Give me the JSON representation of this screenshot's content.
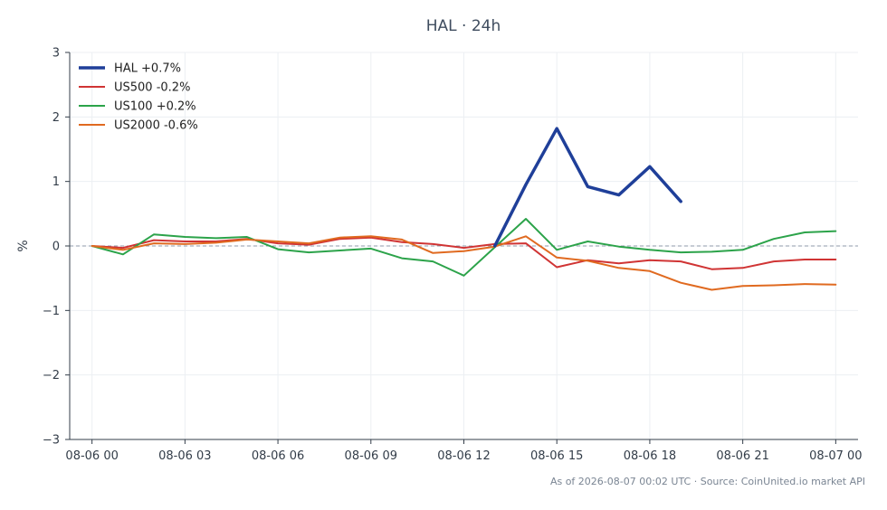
{
  "chart_data": {
    "type": "line",
    "title": "HAL · 24h",
    "ylabel": "%",
    "xlabel": "",
    "ylim": [
      -3,
      3
    ],
    "yticks": [
      3,
      2,
      1,
      0,
      -1,
      -2,
      -3
    ],
    "ytick_labels": [
      "3",
      "2",
      "1",
      "0",
      "−1",
      "−2",
      "−3"
    ],
    "x_hours": [
      0,
      1,
      2,
      3,
      4,
      5,
      6,
      7,
      8,
      9,
      10,
      11,
      12,
      13,
      14,
      15,
      16,
      17,
      18,
      19,
      20,
      21,
      22,
      23,
      24
    ],
    "xticks": [
      {
        "hour": 0,
        "label": "08-06 00"
      },
      {
        "hour": 3,
        "label": "08-06 03"
      },
      {
        "hour": 6,
        "label": "08-06 06"
      },
      {
        "hour": 9,
        "label": "08-06 09"
      },
      {
        "hour": 12,
        "label": "08-06 12"
      },
      {
        "hour": 15,
        "label": "08-06 15"
      },
      {
        "hour": 18,
        "label": "08-06 18"
      },
      {
        "hour": 21,
        "label": "08-06 21"
      },
      {
        "hour": 24,
        "label": "08-07 00"
      }
    ],
    "grid": true,
    "zero_line": true,
    "legend_position": "top-left",
    "series": [
      {
        "name": "HAL +0.7%",
        "color": "#1f3f99",
        "width": 3.5,
        "start_hour": 13,
        "values": [
          0.0,
          0.95,
          1.82,
          0.92,
          0.79,
          1.23,
          0.69
        ]
      },
      {
        "name": "US500 -0.2%",
        "color": "#d03434",
        "width": 2,
        "start_hour": 0,
        "values": [
          0.0,
          -0.03,
          0.09,
          0.07,
          0.07,
          0.11,
          0.04,
          0.02,
          0.11,
          0.13,
          0.06,
          0.03,
          -0.03,
          0.03,
          0.04,
          -0.33,
          -0.22,
          -0.27,
          -0.22,
          -0.24,
          -0.36,
          -0.34,
          -0.24,
          -0.21,
          -0.21
        ]
      },
      {
        "name": "US100 +0.2%",
        "color": "#2ca34a",
        "width": 2,
        "start_hour": 0,
        "values": [
          0.0,
          -0.13,
          0.18,
          0.14,
          0.12,
          0.14,
          -0.05,
          -0.1,
          -0.07,
          -0.04,
          -0.19,
          -0.24,
          -0.46,
          -0.02,
          0.42,
          -0.06,
          0.07,
          -0.01,
          -0.06,
          -0.1,
          -0.09,
          -0.06,
          0.11,
          0.21,
          0.23
        ]
      },
      {
        "name": "US2000 -0.6%",
        "color": "#e06a20",
        "width": 2,
        "start_hour": 0,
        "values": [
          0.0,
          -0.06,
          0.04,
          0.03,
          0.05,
          0.1,
          0.07,
          0.04,
          0.13,
          0.15,
          0.1,
          -0.11,
          -0.08,
          -0.01,
          0.15,
          -0.18,
          -0.23,
          -0.34,
          -0.39,
          -0.57,
          -0.68,
          -0.62,
          -0.61,
          -0.59,
          -0.6
        ]
      }
    ]
  },
  "footer": "As of 2026-08-07 00:02 UTC · Source: CoinUnited.io market API"
}
